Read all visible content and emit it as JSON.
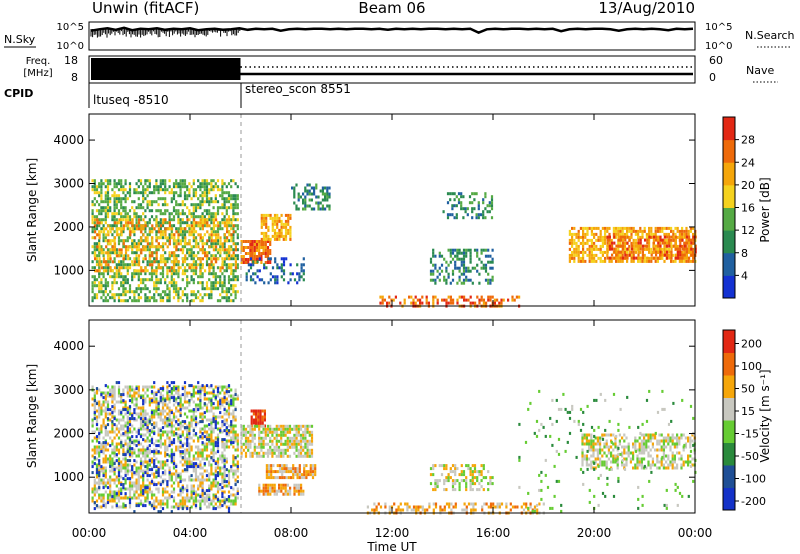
{
  "header": {
    "station": "Unwin (fitACF)",
    "beam": "Beam 06",
    "date": "13/Aug/2010"
  },
  "noise_panel": {
    "left_label": "N.Sky",
    "right_label": "N.Search",
    "tick_top": "10^5",
    "tick_bottom": "10^0",
    "sky_trace": [
      3.6,
      3.9,
      4.1,
      3.8,
      4.2,
      3.7,
      4.0,
      3.9,
      4.1,
      3.8,
      4.0,
      3.9,
      4.1,
      3.7,
      3.9,
      4.0,
      3.8,
      3.9,
      4.1,
      3.8,
      4.0,
      3.9,
      4.0,
      3.6,
      3.9,
      4.0,
      3.9,
      4.0,
      4.0,
      3.9,
      4.0,
      3.9,
      4.0,
      4.0,
      3.9,
      4.0,
      3.8,
      4.0,
      3.9,
      4.0,
      3.9,
      4.0,
      4.0,
      3.9,
      4.0,
      3.9,
      4.0,
      3.2,
      3.9,
      4.0,
      3.9,
      4.0,
      4.0,
      3.9,
      4.0,
      3.9,
      4.0,
      3.5,
      3.9,
      4.0,
      3.9,
      4.0,
      4.0,
      3.9,
      3.6,
      3.9,
      4.0,
      3.9,
      4.0,
      3.9,
      3.7,
      4.0,
      3.9,
      4.0
    ]
  },
  "freq_panel": {
    "label_line1": "Freq.",
    "label_line2": "[MHz]",
    "ticks_left": [
      "18",
      "8"
    ],
    "ticks_right": [
      "60",
      "0"
    ],
    "right_label": "Nave",
    "freq_mhz_after": 13.2
  },
  "cpid": {
    "label": "CPID",
    "segments": [
      {
        "name": "ltuseq -8510",
        "start_hour": 0,
        "end_hour": 6
      },
      {
        "name": "stereo_scon 8551",
        "start_hour": 6,
        "end_hour": 24
      }
    ]
  },
  "power_panel": {
    "ylabel": "Slant Range [km]",
    "yticks": [
      "1000",
      "2000",
      "3000",
      "4000"
    ],
    "colorbar_label": "Power [dB]",
    "colorbar_ticks": [
      "28",
      "24",
      "20",
      "16",
      "12",
      "8",
      "4"
    ],
    "colors": [
      "#1432d2",
      "#2060a0",
      "#2a8a50",
      "#55aa44",
      "#f5d21e",
      "#f5a60a",
      "#ee6a0a",
      "#e22814"
    ]
  },
  "velocity_panel": {
    "ylabel": "Slant Range [km]",
    "yticks": [
      "1000",
      "2000",
      "3000",
      "4000"
    ],
    "colorbar_label": "Velocity [m s⁻¹]",
    "colorbar_ticks": [
      "200",
      "100",
      "50",
      "15",
      "-15",
      "-50",
      "-100",
      "-200"
    ],
    "colors": [
      "#1432c8",
      "#1f4f96",
      "#2a8a3c",
      "#66cc33",
      "#c8c8c0",
      "#f5a60a",
      "#ee6a0a",
      "#e22814"
    ]
  },
  "xaxis": {
    "label": "Time UT",
    "ticks": [
      "00:00",
      "04:00",
      "08:00",
      "12:00",
      "16:00",
      "20:00",
      "00:00"
    ]
  },
  "chart_data": {
    "type": "heatmap",
    "title": "Unwin (fitACF)  Beam 06  13/Aug/2010",
    "xlabel": "Time UT",
    "ylabel": "Slant Range [km]",
    "xlim_hours": [
      0,
      24
    ],
    "ylim_km": [
      180,
      4600
    ],
    "colorbar_power_db": [
      4,
      8,
      12,
      16,
      20,
      24,
      28
    ],
    "colorbar_velocity_ms": [
      -200,
      -100,
      -50,
      -15,
      15,
      50,
      100,
      200
    ],
    "power_regions": [
      {
        "t0": 0.1,
        "t1": 5.9,
        "r0": 300,
        "r1": 3100,
        "level": 3,
        "density": 0.55
      },
      {
        "t0": 0.2,
        "t1": 5.8,
        "r0": 1000,
        "r1": 2200,
        "level": 5,
        "density": 0.35
      },
      {
        "t0": 6.0,
        "t1": 7.2,
        "r0": 1200,
        "r1": 1700,
        "level": 6,
        "density": 0.8
      },
      {
        "t0": 6.8,
        "t1": 8.0,
        "r0": 1700,
        "r1": 2300,
        "level": 5,
        "density": 0.7
      },
      {
        "t0": 8.0,
        "t1": 9.5,
        "r0": 2400,
        "r1": 3000,
        "level": 2,
        "density": 0.45
      },
      {
        "t0": 6.2,
        "t1": 8.5,
        "r0": 700,
        "r1": 1300,
        "level": 1,
        "density": 0.35
      },
      {
        "t0": 13.5,
        "t1": 16.0,
        "r0": 700,
        "r1": 1500,
        "level": 2,
        "density": 0.4
      },
      {
        "t0": 14.0,
        "t1": 16.0,
        "r0": 2200,
        "r1": 2800,
        "level": 2,
        "density": 0.35
      },
      {
        "t0": 11.5,
        "t1": 17.0,
        "r0": 200,
        "r1": 420,
        "level": 6,
        "density": 0.5
      },
      {
        "t0": 19.0,
        "t1": 24.0,
        "r0": 1200,
        "r1": 2000,
        "level": 5,
        "density": 0.7
      },
      {
        "t0": 20.5,
        "t1": 24.0,
        "r0": 1300,
        "r1": 1800,
        "level": 6,
        "density": 0.6
      }
    ],
    "velocity_regions": [
      {
        "t0": 0.1,
        "t1": 5.9,
        "r0": 300,
        "r1": 3100,
        "level": 4,
        "density": 0.55
      },
      {
        "t0": 0.1,
        "t1": 5.9,
        "r0": 200,
        "r1": 3200,
        "level": 0,
        "density": 0.12
      },
      {
        "t0": 6.4,
        "t1": 7.0,
        "r0": 2200,
        "r1": 2550,
        "level": 7,
        "density": 0.9
      },
      {
        "t0": 6.0,
        "t1": 8.8,
        "r0": 1500,
        "r1": 2200,
        "level": 4,
        "density": 0.75
      },
      {
        "t0": 7.0,
        "t1": 9.0,
        "r0": 1000,
        "r1": 1300,
        "level": 5,
        "density": 0.8
      },
      {
        "t0": 6.7,
        "t1": 8.5,
        "r0": 600,
        "r1": 850,
        "level": 5,
        "density": 0.75
      },
      {
        "t0": 13.5,
        "t1": 16.0,
        "r0": 700,
        "r1": 1300,
        "level": 4,
        "density": 0.45
      },
      {
        "t0": 11.0,
        "t1": 18.0,
        "r0": 200,
        "r1": 420,
        "level": 5,
        "density": 0.45
      },
      {
        "t0": 19.5,
        "t1": 24.0,
        "r0": 1200,
        "r1": 2000,
        "level": 4,
        "density": 0.55
      },
      {
        "t0": 17.0,
        "t1": 24.0,
        "r0": 200,
        "r1": 3000,
        "level": 3,
        "density": 0.05
      }
    ]
  }
}
